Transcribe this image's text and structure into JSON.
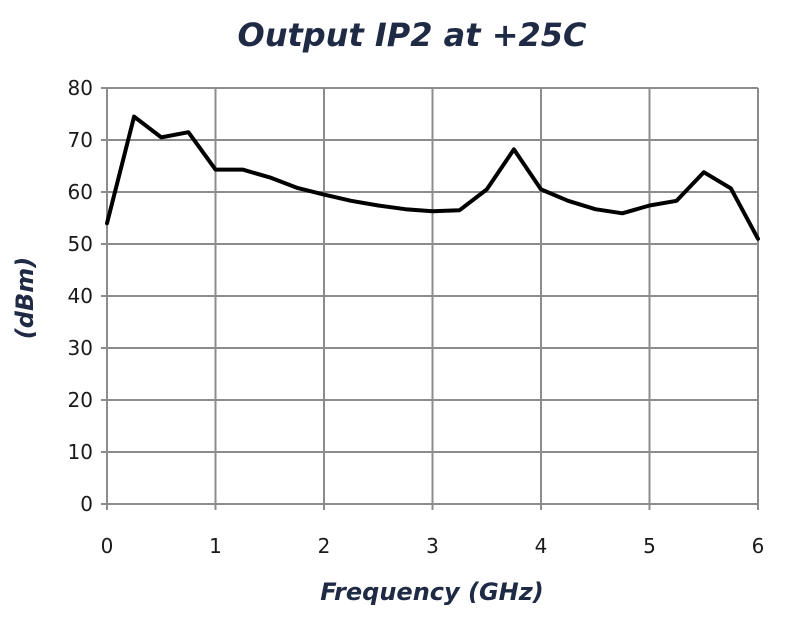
{
  "chart_data": {
    "type": "line",
    "title": "Output IP2 at +25C",
    "xlabel": "Frequency (GHz)",
    "ylabel": "(dBm)",
    "xlim": [
      0,
      6
    ],
    "ylim": [
      0,
      80
    ],
    "x_ticks": [
      0,
      1,
      2,
      3,
      4,
      5,
      6
    ],
    "y_ticks": [
      0,
      10,
      20,
      30,
      40,
      50,
      60,
      70,
      80
    ],
    "grid": true,
    "legend": "none",
    "line_color": "#000000",
    "grid_color": "#8c8c8c",
    "series": [
      {
        "x": [
          0,
          0.25,
          0.5,
          0.75,
          1.0,
          1.25,
          1.5,
          1.75,
          2.0,
          2.25,
          2.5,
          2.75,
          3.0,
          3.25,
          3.5,
          3.75,
          4.0,
          4.25,
          4.5,
          4.75,
          5.0,
          5.25,
          5.5,
          5.75,
          6.0
        ],
        "y": [
          54,
          74.5,
          70.5,
          71.5,
          64.3,
          64.3,
          62.8,
          60.8,
          59.5,
          58.3,
          57.4,
          56.7,
          56.3,
          56.5,
          60.5,
          68.2,
          60.5,
          58.3,
          56.7,
          55.9,
          57.4,
          58.3,
          63.8,
          60.7,
          51
        ]
      }
    ]
  }
}
